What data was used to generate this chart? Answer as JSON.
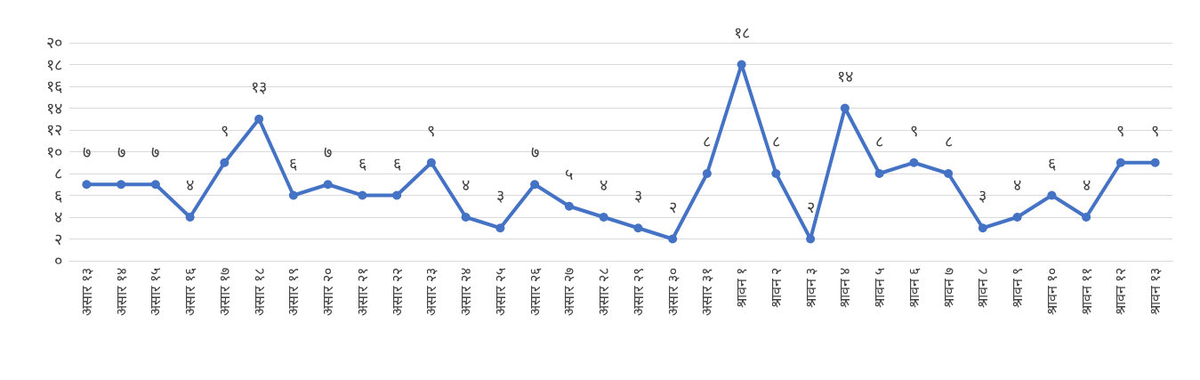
{
  "chart_data": {
    "type": "line",
    "categories": [
      "असार १३",
      "असार १४",
      "असार १५",
      "असार १६",
      "असार १७",
      "असार १८",
      "असार १९",
      "असार २०",
      "असार २१",
      "असार २२",
      "असार २३",
      "असार २४",
      "असार २५",
      "असार २६",
      "असार २७",
      "असार २८",
      "असार २९",
      "असार ३०",
      "असार ३१",
      "श्रावन १",
      "श्रावन २",
      "श्रावन ३",
      "श्रावन ४",
      "श्रावन ५",
      "श्रावन ६",
      "श्रावन ७",
      "श्रावन ८",
      "श्रावन ९",
      "श्रावन १०",
      "श्रावन ११",
      "श्रावन १२",
      "श्रावन १३"
    ],
    "series": [
      {
        "color": "#4472c4",
        "values": [
          7,
          7,
          7,
          4,
          9,
          13,
          6,
          7,
          6,
          6,
          9,
          4,
          3,
          7,
          5,
          4,
          3,
          2,
          8,
          18,
          8,
          2,
          14,
          8,
          9,
          8,
          3,
          4,
          6,
          4,
          9,
          9
        ],
        "value_labels": [
          "७",
          "७",
          "७",
          "४",
          "९",
          "१३",
          "६",
          "७",
          "६",
          "६",
          "९",
          "४",
          "३",
          "७",
          "५",
          "४",
          "३",
          "२",
          "८",
          "१८",
          "८",
          "२",
          "१४",
          "८",
          "९",
          "८",
          "३",
          "४",
          "६",
          "४",
          "९",
          "९"
        ]
      }
    ],
    "ylim": [
      0,
      20
    ],
    "yticks": [
      {
        "value": 0,
        "label": "०"
      },
      {
        "value": 2,
        "label": "२"
      },
      {
        "value": 4,
        "label": "४"
      },
      {
        "value": 6,
        "label": "६"
      },
      {
        "value": 8,
        "label": "८"
      },
      {
        "value": 10,
        "label": "१०"
      },
      {
        "value": 12,
        "label": "१२"
      },
      {
        "value": 14,
        "label": "१४"
      },
      {
        "value": 16,
        "label": "१६"
      },
      {
        "value": 18,
        "label": "१८"
      },
      {
        "value": 20,
        "label": "२०"
      }
    ],
    "grid": true,
    "marker": "circle",
    "line_style": "solid"
  }
}
